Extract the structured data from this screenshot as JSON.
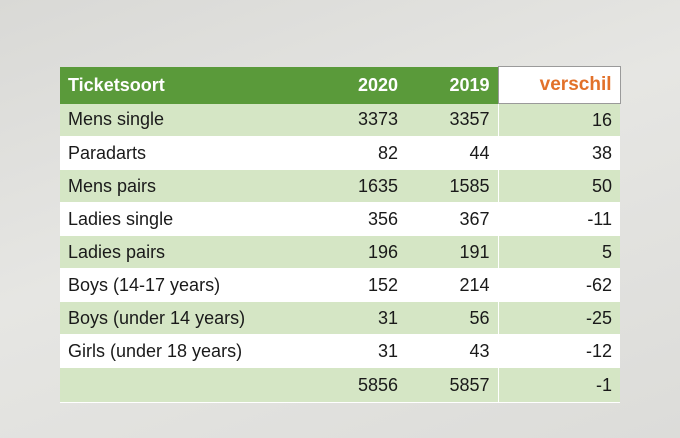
{
  "table": {
    "headers": {
      "type": "Ticketsoort",
      "y2020": "2020",
      "y2019": "2019",
      "diff": "verschil"
    },
    "rows": [
      {
        "type": "Mens single",
        "y2020": "3373",
        "y2019": "3357",
        "diff": "16"
      },
      {
        "type": "Paradarts",
        "y2020": "82",
        "y2019": "44",
        "diff": "38"
      },
      {
        "type": "Mens pairs",
        "y2020": "1635",
        "y2019": "1585",
        "diff": "50"
      },
      {
        "type": "Ladies single",
        "y2020": "356",
        "y2019": "367",
        "diff": "-11"
      },
      {
        "type": "Ladies pairs",
        "y2020": "196",
        "y2019": "191",
        "diff": "5"
      },
      {
        "type": "Boys (14-17 years)",
        "y2020": "152",
        "y2019": "214",
        "diff": "-62"
      },
      {
        "type": "Boys (under 14 years)",
        "y2020": "31",
        "y2019": "56",
        "diff": "-25"
      },
      {
        "type": "Girls (under 18 years)",
        "y2020": "31",
        "y2019": "43",
        "diff": "-12"
      }
    ],
    "total": {
      "type": "",
      "y2020": "5856",
      "y2019": "5857",
      "diff": "-1"
    }
  },
  "colors": {
    "header_green": "#5a9a3a",
    "row_light_green": "#d5e6c5",
    "diff_header_orange": "#e2712a"
  }
}
